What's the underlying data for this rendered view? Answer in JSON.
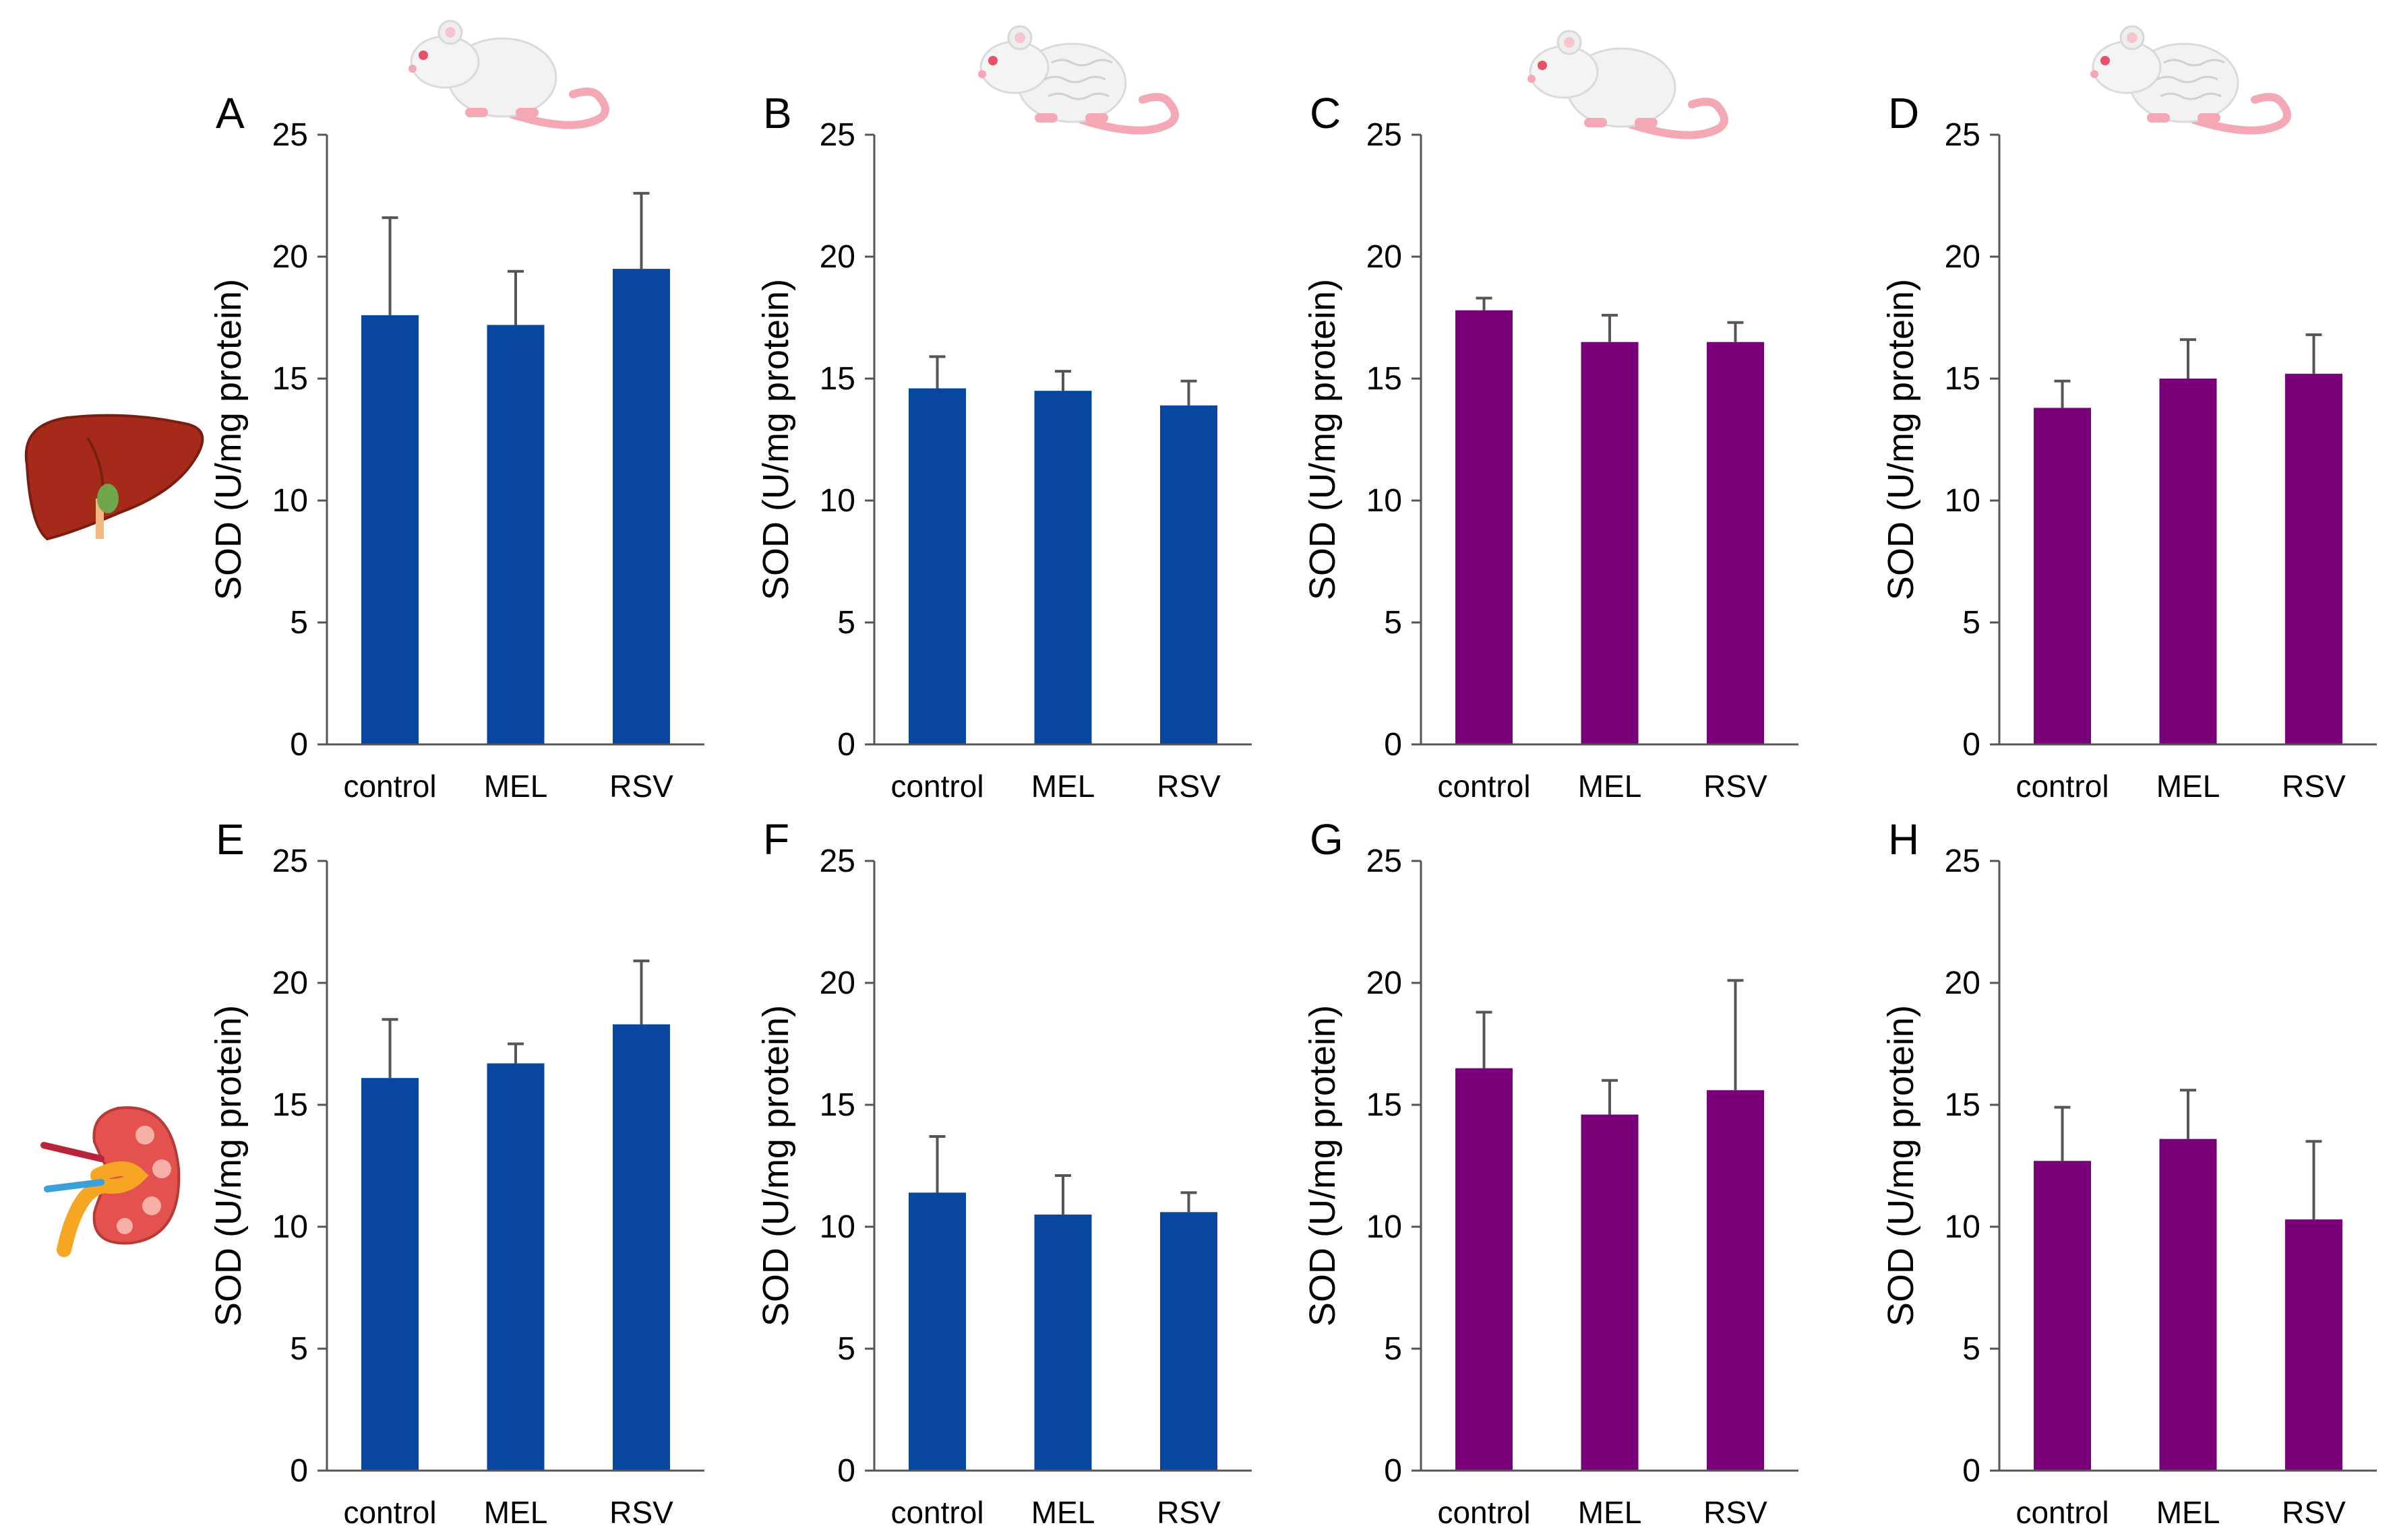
{
  "colors": {
    "blue": "#0747A0",
    "purple": "#7A0079",
    "axis": "#555555",
    "err": "#555555"
  },
  "charts": [
    {
      "label": "A",
      "color": "blue",
      "ylabel": "SOD (U/mg protein)",
      "categories": [
        "control",
        "MEL",
        "RSV"
      ],
      "ticks": [
        "0",
        "5",
        "10",
        "15",
        "20",
        "25"
      ]
    },
    {
      "label": "B",
      "color": "blue",
      "ylabel": "SOD (U/mg protein)",
      "categories": [
        "control",
        "MEL",
        "RSV"
      ],
      "ticks": [
        "0",
        "5",
        "10",
        "15",
        "20",
        "25"
      ]
    },
    {
      "label": "C",
      "color": "purple",
      "ylabel": "SOD (U/mg protein)",
      "categories": [
        "control",
        "MEL",
        "RSV"
      ],
      "ticks": [
        "0",
        "5",
        "10",
        "15",
        "20",
        "25"
      ]
    },
    {
      "label": "D",
      "color": "purple",
      "ylabel": "SOD (U/mg protein)",
      "categories": [
        "control",
        "MEL",
        "RSV"
      ],
      "ticks": [
        "0",
        "5",
        "10",
        "15",
        "20",
        "25"
      ]
    },
    {
      "label": "E",
      "color": "blue",
      "ylabel": "SOD (U/mg protein)",
      "categories": [
        "control",
        "MEL",
        "RSV"
      ],
      "ticks": [
        "0",
        "5",
        "10",
        "15",
        "20",
        "25"
      ]
    },
    {
      "label": "F",
      "color": "blue",
      "ylabel": "SOD (U/mg protein)",
      "categories": [
        "control",
        "MEL",
        "RSV"
      ],
      "ticks": [
        "0",
        "5",
        "10",
        "15",
        "20",
        "25"
      ]
    },
    {
      "label": "G",
      "color": "purple",
      "ylabel": "SOD (U/mg protein)",
      "categories": [
        "control",
        "MEL",
        "RSV"
      ],
      "ticks": [
        "0",
        "5",
        "10",
        "15",
        "20",
        "25"
      ]
    },
    {
      "label": "H",
      "color": "purple",
      "ylabel": "SOD (U/mg protein)",
      "categories": [
        "control",
        "MEL",
        "RSV"
      ],
      "ticks": [
        "0",
        "5",
        "10",
        "15",
        "20",
        "25"
      ]
    }
  ],
  "chart_data": [
    {
      "type": "bar",
      "title": "A",
      "xlabel": "",
      "ylabel": "SOD (U/mg protein)",
      "ylim": [
        0,
        25
      ],
      "categories": [
        "control",
        "MEL",
        "RSV"
      ],
      "values": [
        17.6,
        17.2,
        19.5
      ],
      "errors": [
        4.0,
        2.2,
        3.1
      ]
    },
    {
      "type": "bar",
      "title": "B",
      "xlabel": "",
      "ylabel": "SOD (U/mg protein)",
      "ylim": [
        0,
        25
      ],
      "categories": [
        "control",
        "MEL",
        "RSV"
      ],
      "values": [
        14.6,
        14.5,
        13.9
      ],
      "errors": [
        1.3,
        0.8,
        1.0
      ]
    },
    {
      "type": "bar",
      "title": "C",
      "xlabel": "",
      "ylabel": "SOD (U/mg protein)",
      "ylim": [
        0,
        25
      ],
      "categories": [
        "control",
        "MEL",
        "RSV"
      ],
      "values": [
        17.8,
        16.5,
        16.5
      ],
      "errors": [
        0.5,
        1.1,
        0.8
      ]
    },
    {
      "type": "bar",
      "title": "D",
      "xlabel": "",
      "ylabel": "SOD (U/mg protein)",
      "ylim": [
        0,
        25
      ],
      "categories": [
        "control",
        "MEL",
        "RSV"
      ],
      "values": [
        13.8,
        15.0,
        15.2
      ],
      "errors": [
        1.1,
        1.6,
        1.6
      ]
    },
    {
      "type": "bar",
      "title": "E",
      "xlabel": "",
      "ylabel": "SOD (U/mg protein)",
      "ylim": [
        0,
        25
      ],
      "categories": [
        "control",
        "MEL",
        "RSV"
      ],
      "values": [
        16.1,
        16.7,
        18.3
      ],
      "errors": [
        2.4,
        0.8,
        2.6
      ]
    },
    {
      "type": "bar",
      "title": "F",
      "xlabel": "",
      "ylabel": "SOD (U/mg protein)",
      "ylim": [
        0,
        25
      ],
      "categories": [
        "control",
        "MEL",
        "RSV"
      ],
      "values": [
        11.4,
        10.5,
        10.6
      ],
      "errors": [
        2.3,
        1.6,
        0.8
      ]
    },
    {
      "type": "bar",
      "title": "G",
      "xlabel": "",
      "ylabel": "SOD (U/mg protein)",
      "ylim": [
        0,
        25
      ],
      "categories": [
        "control",
        "MEL",
        "RSV"
      ],
      "values": [
        16.5,
        14.6,
        15.6
      ],
      "errors": [
        2.3,
        1.4,
        4.5
      ]
    },
    {
      "type": "bar",
      "title": "H",
      "xlabel": "",
      "ylabel": "SOD (U/mg protein)",
      "ylim": [
        0,
        25
      ],
      "categories": [
        "control",
        "MEL",
        "RSV"
      ],
      "values": [
        12.7,
        13.6,
        10.3
      ],
      "errors": [
        2.2,
        2.0,
        3.2
      ]
    }
  ],
  "icons": {
    "rats": [
      "rat-white-icon",
      "rat-striped-icon",
      "rat-white-icon",
      "rat-striped-icon"
    ],
    "organs": [
      "liver-icon",
      "kidney-icon"
    ]
  }
}
